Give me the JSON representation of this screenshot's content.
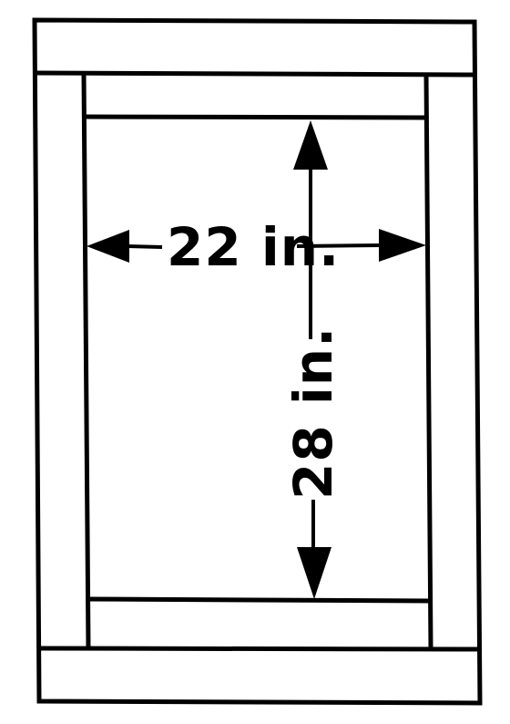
{
  "diagram": {
    "width_dimension": {
      "label": "22 in."
    },
    "height_dimension": {
      "label": "28 in."
    }
  },
  "colors": {
    "line": "#000000",
    "background": "#ffffff"
  }
}
